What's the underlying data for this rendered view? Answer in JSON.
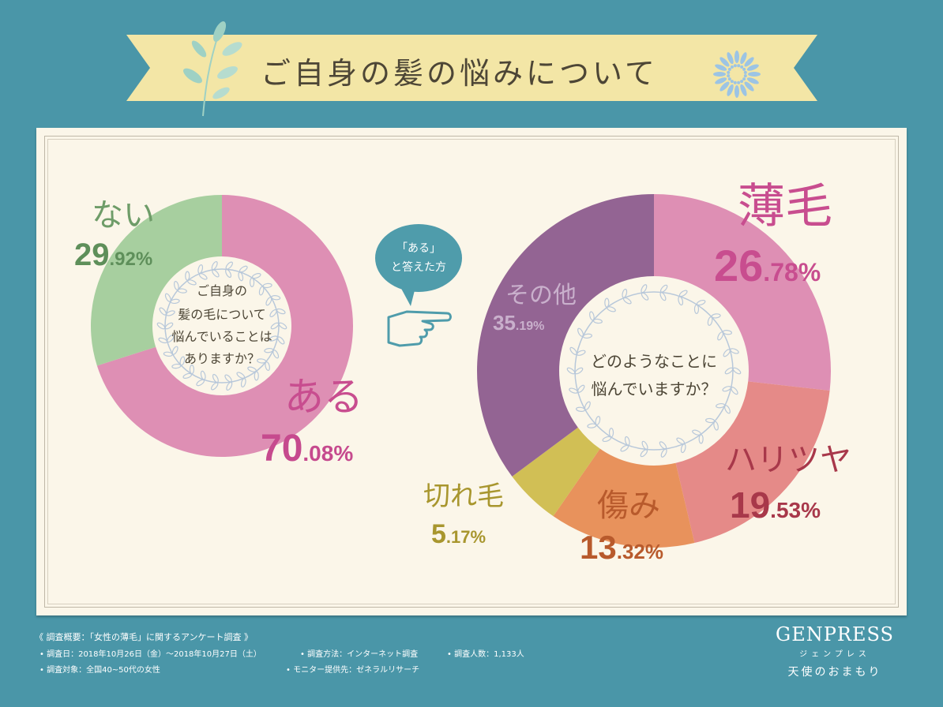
{
  "title": "ご自身の髪の悩みについて",
  "colors": {
    "background": "#4a96a8",
    "banner": "#f3e6a6",
    "panel": "#fbf6e9",
    "aru": "#de8fb4",
    "nai": "#a7cf9f",
    "usuge": "#de8fb4",
    "haritsuya": "#e58a88",
    "itami": "#e8925c",
    "kiregen": "#d1bf55",
    "sonota": "#936493",
    "teal": "#4f9cab"
  },
  "chart_data": [
    {
      "type": "pie",
      "center_text": [
        "ご自身の",
        "髪の毛について",
        "悩んでいることは",
        "ありますか？"
      ],
      "slices": [
        {
          "label": "ある",
          "value_int": "70",
          "value_dec": ".08%",
          "value": 70.08,
          "color": "#de8fb4",
          "text_color": "#c64a8e"
        },
        {
          "label": "ない",
          "value_int": "29",
          "value_dec": ".92%",
          "value": 29.92,
          "color": "#a7cf9f",
          "text_color": "#5e8f5a"
        }
      ]
    },
    {
      "type": "pie",
      "center_text": [
        "どのようなことに",
        "悩んでいますか？"
      ],
      "slices": [
        {
          "label": "薄毛",
          "value_int": "26",
          "value_dec": ".78%",
          "value": 26.78,
          "color": "#de8fb4",
          "text_color": "#c84d8f"
        },
        {
          "label": "ハリツヤ",
          "value_int": "19",
          "value_dec": ".53%",
          "value": 19.53,
          "color": "#e58a88",
          "text_color": "#a8384a"
        },
        {
          "label": "傷み",
          "value_int": "13",
          "value_dec": ".32%",
          "value": 13.32,
          "color": "#e8925c",
          "text_color": "#b85a2c"
        },
        {
          "label": "切れ毛",
          "value_int": "5",
          "value_dec": ".17%",
          "value": 5.17,
          "color": "#d1bf55",
          "text_color": "#a8962e"
        },
        {
          "label": "その他",
          "value_int": "35",
          "value_dec": ".19%",
          "value": 35.19,
          "color": "#936493",
          "text_color": "#c9b0cc"
        }
      ]
    }
  ],
  "bubble": {
    "line1": "「ある」",
    "line2": "と答えた方"
  },
  "icons": {
    "pointer": "pointing-hand-icon",
    "leaf": "leaf-branch-icon",
    "flower": "snowflake-flower-icon"
  },
  "footer": {
    "summary": "《 調査概要：「女性の薄毛」に関するアンケート調査 》",
    "date": "• 調査日：2018年10月26日（金）～2018年10月27日（土）",
    "method": "• 調査方法：インターネット調査",
    "count": "• 調査人数：1,133人",
    "target": "• 調査対象：全国40~50代の女性",
    "provider": "• モニター提供先：ゼネラルリサーチ"
  },
  "logo": {
    "name": "GENPRESS",
    "kana": "ジェンプレス",
    "tagline": "天使のおまもり"
  }
}
